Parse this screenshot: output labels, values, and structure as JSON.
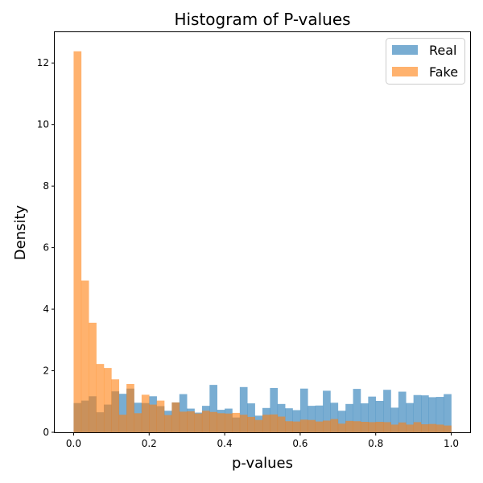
{
  "chart_data": {
    "type": "histogram",
    "title": "Histogram of P-values",
    "xlabel": "p-values",
    "ylabel": "Density",
    "xlim": [
      -0.05,
      1.05
    ],
    "ylim": [
      0,
      13
    ],
    "xticks": [
      0.0,
      0.2,
      0.4,
      0.6,
      0.8,
      1.0
    ],
    "xtick_labels": [
      "0.0",
      "0.2",
      "0.4",
      "0.6",
      "0.8",
      "1.0"
    ],
    "yticks": [
      0,
      2,
      4,
      6,
      8,
      10,
      12
    ],
    "ytick_labels": [
      "0",
      "2",
      "4",
      "6",
      "8",
      "10",
      "12"
    ],
    "bin_width": 0.02,
    "bin_start": 0.0,
    "legend_position": "upper right",
    "series": [
      {
        "name": "Real",
        "color": "#1f77b4",
        "alpha": 0.6,
        "values": [
          0.95,
          1.03,
          1.17,
          0.65,
          0.9,
          1.33,
          1.25,
          1.42,
          0.96,
          0.95,
          1.17,
          0.85,
          0.7,
          0.97,
          1.24,
          0.77,
          0.64,
          0.86,
          1.54,
          0.73,
          0.77,
          0.48,
          1.47,
          0.94,
          0.54,
          0.79,
          1.44,
          0.92,
          0.78,
          0.72,
          1.42,
          0.86,
          0.87,
          1.35,
          0.96,
          0.7,
          0.92,
          1.41,
          0.94,
          1.16,
          1.02,
          1.38,
          0.8,
          1.32,
          0.95,
          1.21,
          1.2,
          1.14,
          1.15,
          1.24
        ]
      },
      {
        "name": "Fake",
        "color": "#ff7f0e",
        "alpha": 0.6,
        "values": [
          12.38,
          4.93,
          3.56,
          2.22,
          2.09,
          1.72,
          0.57,
          1.57,
          0.62,
          1.22,
          0.9,
          1.03,
          0.56,
          0.97,
          0.67,
          0.68,
          0.61,
          0.7,
          0.66,
          0.62,
          0.61,
          0.63,
          0.57,
          0.5,
          0.4,
          0.57,
          0.58,
          0.51,
          0.36,
          0.35,
          0.41,
          0.4,
          0.35,
          0.38,
          0.43,
          0.28,
          0.37,
          0.36,
          0.34,
          0.33,
          0.34,
          0.33,
          0.25,
          0.32,
          0.25,
          0.33,
          0.26,
          0.27,
          0.25,
          0.22
        ]
      }
    ]
  }
}
